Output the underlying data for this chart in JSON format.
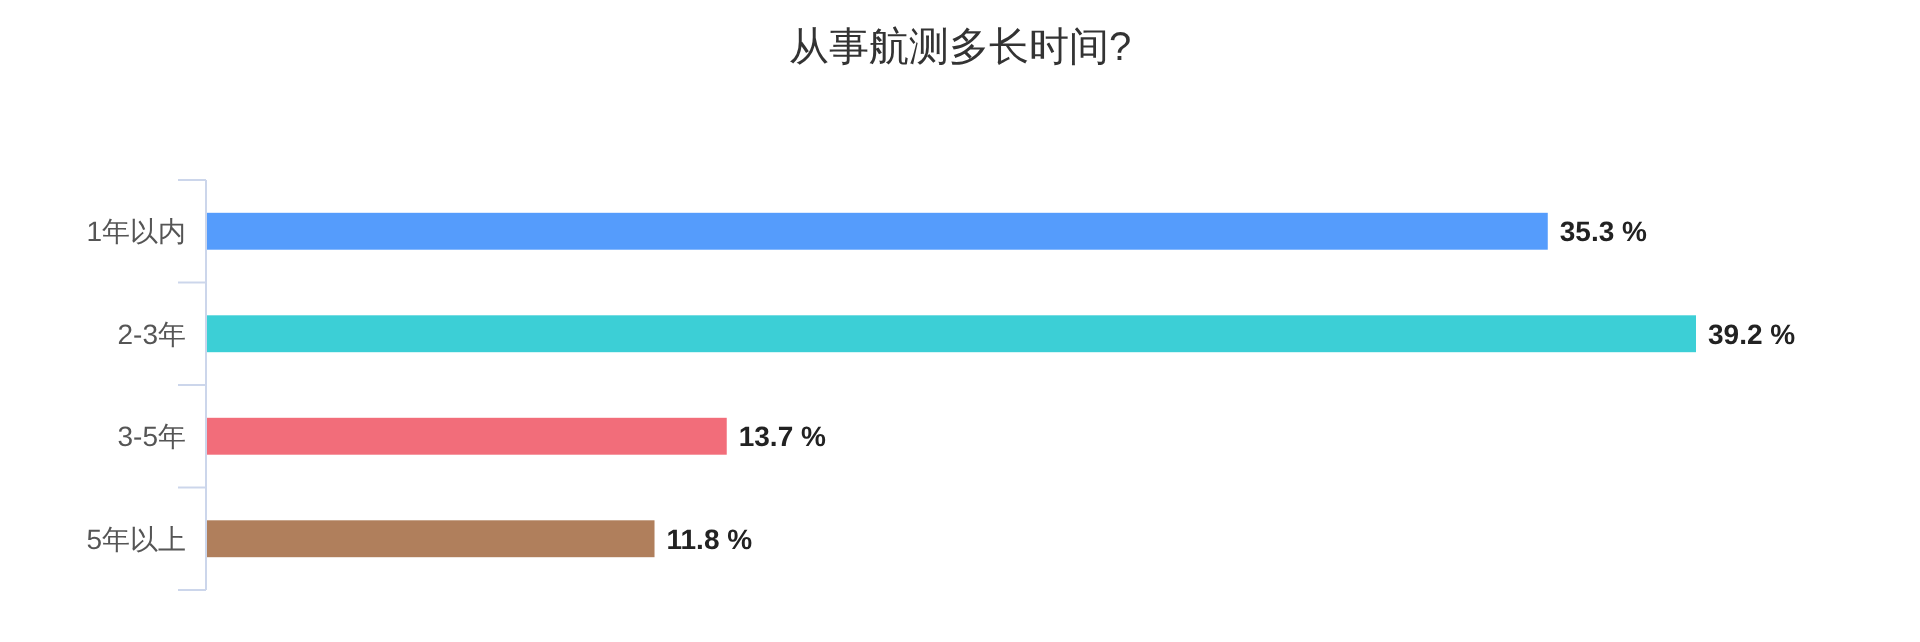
{
  "chart_data": {
    "type": "bar",
    "orientation": "horizontal",
    "title": "从事航测多长时间?",
    "categories": [
      "1年以内",
      "2-3年",
      "3-5年",
      "5年以上"
    ],
    "values": [
      35.3,
      39.2,
      13.7,
      11.8
    ],
    "colors": [
      "#559cfc",
      "#3ccfd6",
      "#f26d7a",
      "#b07f5c"
    ],
    "value_labels": [
      "35.3 %",
      "39.2 %",
      "13.7 %",
      "11.8 %"
    ]
  }
}
